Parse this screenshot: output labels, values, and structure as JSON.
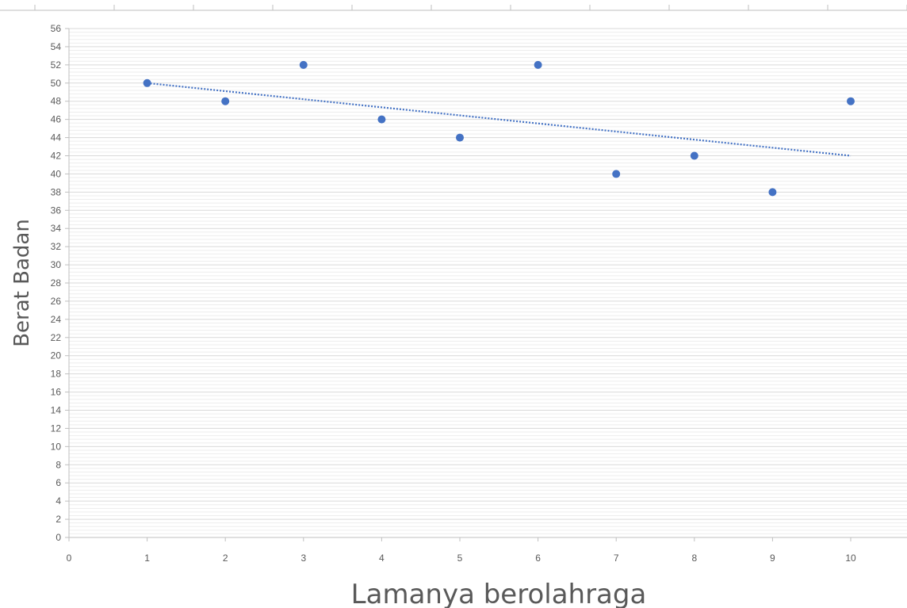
{
  "chart_data": {
    "type": "scatter",
    "title": "",
    "xlabel": "Lamanya berolahraga",
    "ylabel": "Berat Badan",
    "xlim": [
      0,
      10
    ],
    "ylim": [
      0,
      56
    ],
    "x_ticks": [
      "0",
      "1",
      "2",
      "3",
      "4",
      "5",
      "6",
      "7",
      "8",
      "9",
      "10"
    ],
    "y_ticks": [
      "0",
      "2",
      "4",
      "6",
      "8",
      "10",
      "12",
      "14",
      "16",
      "18",
      "20",
      "22",
      "24",
      "26",
      "28",
      "30",
      "32",
      "34",
      "36",
      "38",
      "40",
      "42",
      "44",
      "46",
      "48",
      "50",
      "52",
      "54",
      "56"
    ],
    "series": [
      {
        "points": [
          {
            "x": 1,
            "y": 50
          },
          {
            "x": 2,
            "y": 48
          },
          {
            "x": 3,
            "y": 52
          },
          {
            "x": 4,
            "y": 46
          },
          {
            "x": 5,
            "y": 44
          },
          {
            "x": 6,
            "y": 52
          },
          {
            "x": 7,
            "y": 40
          },
          {
            "x": 8,
            "y": 42
          },
          {
            "x": 9,
            "y": 38
          },
          {
            "x": 10,
            "y": 48
          }
        ]
      }
    ],
    "trendline": {
      "type": "linear",
      "style": "dotted",
      "from": {
        "x": 1,
        "y": 50
      },
      "to": {
        "x": 10,
        "y": 42
      }
    },
    "colors": {
      "marker": "#4472C4",
      "trendline": "#4472C4",
      "major_grid": "#D9D9D9",
      "minor_grid": "#EDEDED",
      "axis": "#BFBFBF",
      "text": "#595959"
    },
    "grid": true,
    "legend": "none"
  }
}
